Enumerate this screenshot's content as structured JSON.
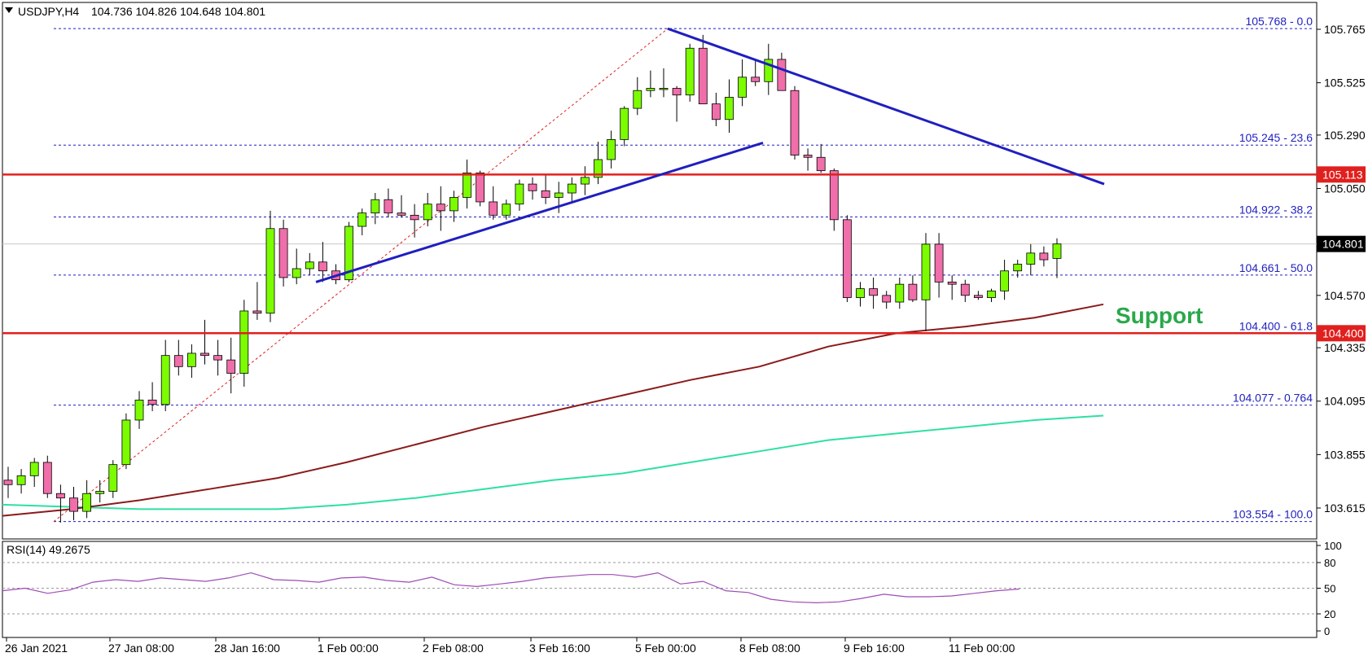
{
  "header": {
    "symbol": "USDJPY,H4",
    "ohlc": "104.736 104.826 104.648 104.801"
  },
  "annotation": {
    "support_label": "Support"
  },
  "price_axis": {
    "ticks": [
      105.765,
      105.525,
      105.29,
      105.05,
      104.57,
      104.335,
      104.095,
      103.855,
      103.615
    ],
    "tick_labels": [
      "105.765",
      "105.525",
      "105.290",
      "105.050",
      "104.570",
      "104.335",
      "104.095",
      "103.855",
      "103.615"
    ],
    "current_price": "104.801",
    "resistance_price": "105.113",
    "support_price": "104.400"
  },
  "time_axis": {
    "labels": [
      "26 Jan 2021",
      "27 Jan 08:00",
      "28 Jan 16:00",
      "1 Feb 00:00",
      "2 Feb 08:00",
      "3 Feb 16:00",
      "5 Feb 00:00",
      "8 Feb 08:00",
      "9 Feb 16:00",
      "11 Feb 00:00"
    ]
  },
  "fibonacci": [
    {
      "label": "105.768 - 0.0",
      "price": 105.768
    },
    {
      "label": "105.245 - 23.6",
      "price": 105.245
    },
    {
      "label": "104.922 - 38.2",
      "price": 104.922
    },
    {
      "label": "104.661 - 50.0",
      "price": 104.661
    },
    {
      "label": "104.400 - 61.8",
      "price": 104.4
    },
    {
      "label": "104.077 - 0.764",
      "price": 104.077
    },
    {
      "label": "103.554 - 100.0",
      "price": 103.554
    }
  ],
  "rsi": {
    "label": "RSI(14) 49.2675",
    "ticks": [
      "100",
      "80",
      "50",
      "20",
      "0"
    ]
  },
  "colors": {
    "bull": "#7CFC00",
    "bear": "#F06EAA",
    "resistance": "#E0201E",
    "trendline": "#1F1FBF",
    "ma_fast": "#8B1A1A",
    "ma_slow": "#2EE0A0",
    "fib": "#1F1FBF",
    "rsi": "#9E4CB5",
    "support_text": "#2AA84A"
  },
  "chart_data": {
    "type": "candlestick",
    "title": "USDJPY,H4",
    "ylim": [
      103.5,
      105.85
    ],
    "candles": [
      {
        "t": "26 Jan 2021",
        "o": 103.74,
        "h": 103.8,
        "l": 103.66,
        "c": 103.72
      },
      {
        "o": 103.72,
        "h": 103.79,
        "l": 103.68,
        "c": 103.76
      },
      {
        "o": 103.76,
        "h": 103.84,
        "l": 103.71,
        "c": 103.82
      },
      {
        "o": 103.82,
        "h": 103.85,
        "l": 103.66,
        "c": 103.68
      },
      {
        "o": 103.68,
        "h": 103.72,
        "l": 103.55,
        "c": 103.66
      },
      {
        "o": 103.66,
        "h": 103.71,
        "l": 103.56,
        "c": 103.6
      },
      {
        "o": 103.6,
        "h": 103.74,
        "l": 103.57,
        "c": 103.68
      },
      {
        "o": 103.68,
        "h": 103.74,
        "l": 103.64,
        "c": 103.69
      },
      {
        "t": "27 Jan 08:00",
        "o": 103.69,
        "h": 103.83,
        "l": 103.66,
        "c": 103.81
      },
      {
        "o": 103.81,
        "h": 104.04,
        "l": 103.79,
        "c": 104.01
      },
      {
        "o": 104.01,
        "h": 104.14,
        "l": 103.97,
        "c": 104.1
      },
      {
        "o": 104.1,
        "h": 104.18,
        "l": 104.05,
        "c": 104.08
      },
      {
        "o": 104.08,
        "h": 104.37,
        "l": 104.05,
        "c": 104.3
      },
      {
        "o": 104.3,
        "h": 104.37,
        "l": 104.21,
        "c": 104.25
      },
      {
        "o": 104.25,
        "h": 104.35,
        "l": 104.2,
        "c": 104.31
      },
      {
        "o": 104.31,
        "h": 104.46,
        "l": 104.26,
        "c": 104.3
      },
      {
        "o": 104.3,
        "h": 104.37,
        "l": 104.21,
        "c": 104.28
      },
      {
        "o": 104.28,
        "h": 104.38,
        "l": 104.13,
        "c": 104.22
      },
      {
        "t": "28 Jan 16:00",
        "o": 104.22,
        "h": 104.55,
        "l": 104.16,
        "c": 104.5
      },
      {
        "o": 104.5,
        "h": 104.63,
        "l": 104.46,
        "c": 104.49
      },
      {
        "o": 104.49,
        "h": 104.95,
        "l": 104.45,
        "c": 104.87
      },
      {
        "o": 104.87,
        "h": 104.91,
        "l": 104.61,
        "c": 104.65
      },
      {
        "o": 104.65,
        "h": 104.78,
        "l": 104.62,
        "c": 104.69
      },
      {
        "o": 104.69,
        "h": 104.76,
        "l": 104.66,
        "c": 104.72
      },
      {
        "o": 104.72,
        "h": 104.81,
        "l": 104.63,
        "c": 104.68
      },
      {
        "t": "1 Feb 00:00",
        "o": 104.68,
        "h": 104.71,
        "l": 104.62,
        "c": 104.64
      },
      {
        "o": 104.64,
        "h": 104.9,
        "l": 104.63,
        "c": 104.88
      },
      {
        "o": 104.88,
        "h": 104.96,
        "l": 104.84,
        "c": 104.94
      },
      {
        "o": 104.94,
        "h": 105.03,
        "l": 104.89,
        "c": 105.0
      },
      {
        "o": 105.0,
        "h": 105.05,
        "l": 104.92,
        "c": 104.94
      },
      {
        "o": 104.94,
        "h": 105.02,
        "l": 104.92,
        "c": 104.93
      },
      {
        "o": 104.93,
        "h": 104.98,
        "l": 104.83,
        "c": 104.91
      },
      {
        "o": 104.91,
        "h": 105.03,
        "l": 104.88,
        "c": 104.98
      },
      {
        "t": "2 Feb 08:00",
        "o": 104.98,
        "h": 105.06,
        "l": 104.86,
        "c": 104.95
      },
      {
        "o": 104.95,
        "h": 105.04,
        "l": 104.9,
        "c": 105.01
      },
      {
        "o": 105.01,
        "h": 105.18,
        "l": 104.96,
        "c": 105.12
      },
      {
        "o": 105.12,
        "h": 105.13,
        "l": 104.97,
        "c": 104.99
      },
      {
        "o": 104.99,
        "h": 105.06,
        "l": 104.91,
        "c": 104.93
      },
      {
        "o": 104.93,
        "h": 105.0,
        "l": 104.91,
        "c": 104.98
      },
      {
        "o": 104.98,
        "h": 105.09,
        "l": 104.95,
        "c": 105.07
      },
      {
        "o": 105.07,
        "h": 105.1,
        "l": 105.0,
        "c": 105.04
      },
      {
        "t": "3 Feb 16:00",
        "o": 105.04,
        "h": 105.11,
        "l": 104.98,
        "c": 105.01
      },
      {
        "o": 105.01,
        "h": 105.08,
        "l": 104.94,
        "c": 105.03
      },
      {
        "o": 105.03,
        "h": 105.1,
        "l": 104.99,
        "c": 105.07
      },
      {
        "o": 105.07,
        "h": 105.15,
        "l": 105.02,
        "c": 105.1
      },
      {
        "o": 105.1,
        "h": 105.26,
        "l": 105.07,
        "c": 105.18
      },
      {
        "o": 105.18,
        "h": 105.31,
        "l": 105.14,
        "c": 105.27
      },
      {
        "o": 105.27,
        "h": 105.42,
        "l": 105.24,
        "c": 105.41
      },
      {
        "o": 105.41,
        "h": 105.55,
        "l": 105.38,
        "c": 105.49
      },
      {
        "o": 105.49,
        "h": 105.58,
        "l": 105.46,
        "c": 105.5
      },
      {
        "t": "5 Feb 00:00",
        "o": 105.5,
        "h": 105.59,
        "l": 105.46,
        "c": 105.5
      },
      {
        "o": 105.5,
        "h": 105.51,
        "l": 105.35,
        "c": 105.47
      },
      {
        "o": 105.47,
        "h": 105.7,
        "l": 105.44,
        "c": 105.68
      },
      {
        "o": 105.68,
        "h": 105.74,
        "l": 105.45,
        "c": 105.43
      },
      {
        "o": 105.43,
        "h": 105.48,
        "l": 105.33,
        "c": 105.36
      },
      {
        "o": 105.36,
        "h": 105.54,
        "l": 105.3,
        "c": 105.46
      },
      {
        "o": 105.46,
        "h": 105.63,
        "l": 105.42,
        "c": 105.55
      },
      {
        "o": 105.55,
        "h": 105.63,
        "l": 105.51,
        "c": 105.53
      },
      {
        "t": "8 Feb 08:00",
        "o": 105.53,
        "h": 105.7,
        "l": 105.47,
        "c": 105.63
      },
      {
        "o": 105.63,
        "h": 105.66,
        "l": 105.49,
        "c": 105.49
      },
      {
        "o": 105.49,
        "h": 105.51,
        "l": 105.18,
        "c": 105.2
      },
      {
        "o": 105.2,
        "h": 105.23,
        "l": 105.13,
        "c": 105.19
      },
      {
        "o": 105.19,
        "h": 105.25,
        "l": 105.12,
        "c": 105.13
      },
      {
        "o": 105.13,
        "h": 105.14,
        "l": 104.86,
        "c": 104.91
      },
      {
        "o": 104.91,
        "h": 104.93,
        "l": 104.54,
        "c": 104.56
      },
      {
        "t": "9 Feb 16:00",
        "o": 104.56,
        "h": 104.63,
        "l": 104.52,
        "c": 104.6
      },
      {
        "o": 104.6,
        "h": 104.65,
        "l": 104.51,
        "c": 104.57
      },
      {
        "o": 104.57,
        "h": 104.59,
        "l": 104.51,
        "c": 104.54
      },
      {
        "o": 104.54,
        "h": 104.65,
        "l": 104.51,
        "c": 104.62
      },
      {
        "o": 104.62,
        "h": 104.66,
        "l": 104.54,
        "c": 104.55
      },
      {
        "o": 104.55,
        "h": 104.85,
        "l": 104.41,
        "c": 104.8
      },
      {
        "o": 104.8,
        "h": 104.85,
        "l": 104.56,
        "c": 104.63
      },
      {
        "o": 104.63,
        "h": 104.66,
        "l": 104.55,
        "c": 104.62
      },
      {
        "t": "11 Feb 00:00",
        "o": 104.62,
        "h": 104.64,
        "l": 104.54,
        "c": 104.57
      },
      {
        "o": 104.57,
        "h": 104.59,
        "l": 104.55,
        "c": 104.56
      },
      {
        "o": 104.56,
        "h": 104.6,
        "l": 104.54,
        "c": 104.59
      },
      {
        "o": 104.59,
        "h": 104.73,
        "l": 104.55,
        "c": 104.68
      },
      {
        "o": 104.68,
        "h": 104.73,
        "l": 104.65,
        "c": 104.71
      },
      {
        "o": 104.71,
        "h": 104.8,
        "l": 104.66,
        "c": 104.76
      },
      {
        "o": 104.76,
        "h": 104.79,
        "l": 104.7,
        "c": 104.73
      },
      {
        "o": 104.736,
        "h": 104.826,
        "l": 104.648,
        "c": 104.801
      }
    ],
    "ma_fast": [
      103.58,
      103.61,
      103.65,
      103.7,
      103.75,
      103.82,
      103.9,
      103.98,
      104.05,
      104.12,
      104.19,
      104.25,
      104.34,
      104.4,
      104.43,
      104.47,
      104.53
    ],
    "ma_slow": [
      103.63,
      103.62,
      103.61,
      103.61,
      103.61,
      103.63,
      103.66,
      103.7,
      103.74,
      103.77,
      103.82,
      103.87,
      103.92,
      103.95,
      103.98,
      104.01,
      104.03
    ],
    "rsi_values": [
      47,
      50,
      44,
      48,
      57,
      60,
      58,
      62,
      60,
      58,
      62,
      68,
      60,
      59,
      57,
      62,
      63,
      59,
      57,
      63,
      54,
      52,
      55,
      58,
      62,
      64,
      66,
      66,
      63,
      68,
      55,
      58,
      47,
      45,
      37,
      34,
      33,
      34,
      38,
      43,
      40,
      40,
      41,
      44,
      47,
      49
    ]
  }
}
